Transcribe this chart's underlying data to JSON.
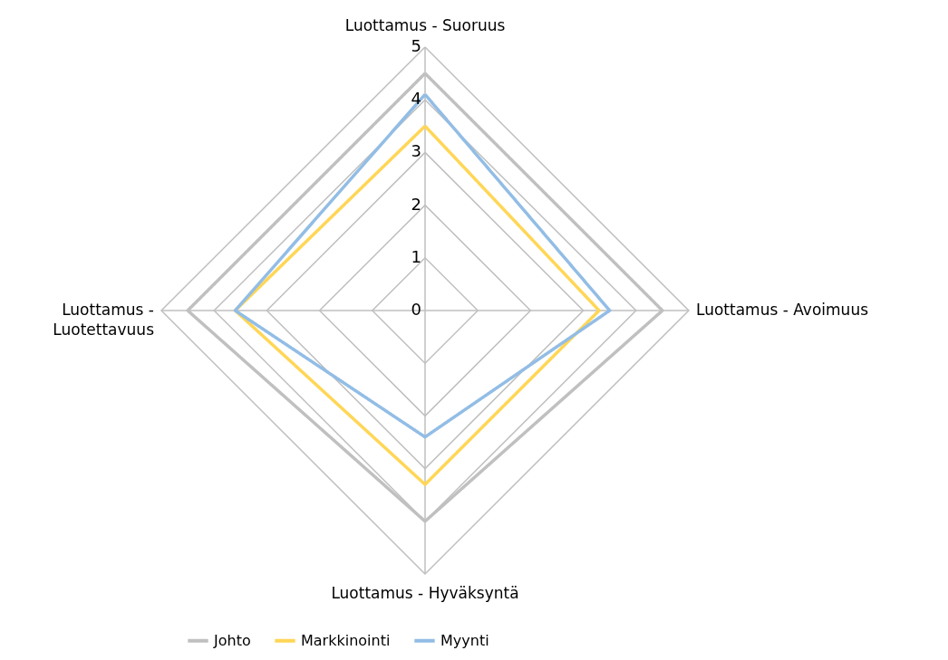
{
  "chart_data": {
    "type": "radar",
    "categories": [
      "Luottamus - Suoruus",
      "Luottamus - Avoimuus",
      "Luottamus - Hyväksyntä",
      "Luottamus - Luotettavuus"
    ],
    "series": [
      {
        "name": "Johto",
        "color": "#c0c0c0",
        "values": [
          4.5,
          4.5,
          4.0,
          4.5
        ]
      },
      {
        "name": "Markkinointi",
        "color": "#ffd656",
        "values": [
          3.5,
          3.3,
          3.3,
          3.6
        ]
      },
      {
        "name": "Myynti",
        "color": "#92bde5",
        "values": [
          4.1,
          3.5,
          2.4,
          3.6
        ]
      }
    ],
    "ylim": [
      0,
      5
    ],
    "yticks": [
      0,
      1,
      2,
      3,
      4,
      5
    ],
    "grid": true,
    "legend": "bottom",
    "marker": "none",
    "line_style": "solid"
  }
}
